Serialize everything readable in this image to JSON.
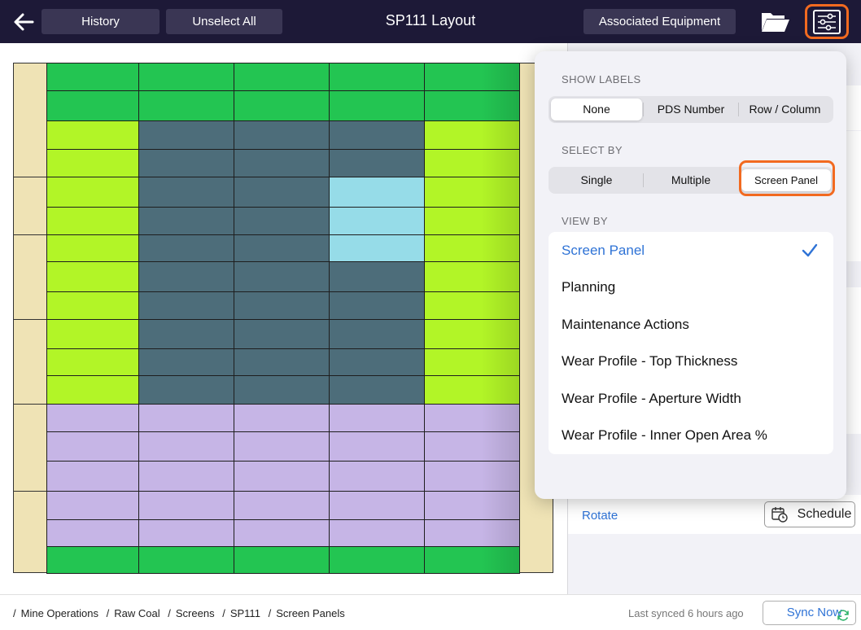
{
  "toolbar": {
    "history_label": "History",
    "unselect_label": "Unselect All",
    "title": "SP111 Layout",
    "associated_label": "Associated Equipment"
  },
  "colors": {
    "topbar": "#1d1937",
    "accent_highlight": "#f26a20",
    "link_blue": "#2f73d6",
    "panel_green": "#23c552",
    "panel_lime": "#b2f527",
    "panel_slate": "#4d6d7a",
    "panel_sky": "#96dce8",
    "panel_lavender": "#c6b5e6",
    "frame_beige": "#efe3b5"
  },
  "grid": {
    "columns": 5,
    "rows": [
      "green",
      "green",
      "lime-slate",
      "lime-slate",
      "lime-slate-sky",
      "lime-slate-sky",
      "lime-slate-sky",
      "lime-slate",
      "lime-slate",
      "lime-slate",
      "lime-slate",
      "lime-slate",
      "lavender",
      "lavender",
      "lavender",
      "lavender",
      "lavender",
      "green"
    ]
  },
  "popover": {
    "show_labels": {
      "heading": "SHOW LABELS",
      "options": [
        "None",
        "PDS Number",
        "Row / Column"
      ],
      "selected": "None"
    },
    "select_by": {
      "heading": "SELECT BY",
      "options": [
        "Single",
        "Multiple",
        "Screen Panel"
      ],
      "selected": "Screen Panel"
    },
    "view_by": {
      "heading": "VIEW BY",
      "items": [
        "Screen Panel",
        "Planning",
        "Maintenance Actions",
        "Wear Profile - Top Thickness",
        "Wear Profile - Aperture Width",
        "Wear Profile - Inner Open Area %"
      ],
      "selected": "Screen Panel"
    }
  },
  "right_panel": {
    "rotate_label": "Rotate",
    "schedule_label": "Schedule"
  },
  "footer": {
    "breadcrumb": [
      "Mine Operations",
      "Raw Coal",
      "Screens",
      "SP111",
      "Screen Panels"
    ],
    "synced_text": "Last synced 6 hours ago",
    "sync_label": "Sync Now"
  }
}
